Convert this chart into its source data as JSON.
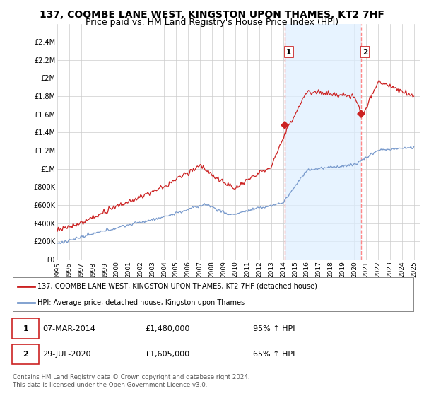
{
  "title": "137, COOMBE LANE WEST, KINGSTON UPON THAMES, KT2 7HF",
  "subtitle": "Price paid vs. HM Land Registry's House Price Index (HPI)",
  "title_fontsize": 10,
  "subtitle_fontsize": 9,
  "ylim": [
    0,
    2600000
  ],
  "yticks": [
    0,
    200000,
    400000,
    600000,
    800000,
    1000000,
    1200000,
    1400000,
    1600000,
    1800000,
    2000000,
    2200000,
    2400000
  ],
  "ytick_labels": [
    "£0",
    "£200K",
    "£400K",
    "£600K",
    "£800K",
    "£1M",
    "£1.2M",
    "£1.4M",
    "£1.6M",
    "£1.8M",
    "£2M",
    "£2.2M",
    "£2.4M"
  ],
  "background_color": "#ffffff",
  "plot_bg_color": "#ffffff",
  "grid_color": "#cccccc",
  "red_line_color": "#cc2222",
  "blue_line_color": "#7799cc",
  "dashed_line_color": "#ff8888",
  "shade_color": "#ddeeff",
  "annotation_box_color": "#cc2222",
  "sale1_x": 2014.17,
  "sale1_y": 1480000,
  "sale2_x": 2020.57,
  "sale2_y": 1605000,
  "legend_label_red": "137, COOMBE LANE WEST, KINGSTON UPON THAMES, KT2 7HF (detached house)",
  "legend_label_blue": "HPI: Average price, detached house, Kingston upon Thames",
  "footer": "Contains HM Land Registry data © Crown copyright and database right 2024.\nThis data is licensed under the Open Government Licence v3.0.",
  "xmin": 1995,
  "xmax": 2025.5
}
